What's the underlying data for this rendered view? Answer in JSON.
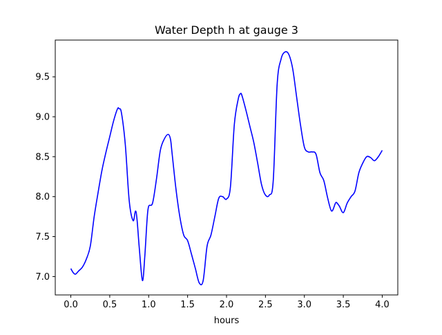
{
  "chart_data": {
    "type": "line",
    "title": "Water Depth h at gauge 3",
    "xlabel": "hours",
    "ylabel": "",
    "xlim": [
      -0.2,
      4.2
    ],
    "ylim": [
      6.77,
      9.96
    ],
    "xticks": [
      0.0,
      0.5,
      1.0,
      1.5,
      2.0,
      2.5,
      3.0,
      3.5,
      4.0
    ],
    "xtick_labels": [
      "0.0",
      "0.5",
      "1.0",
      "1.5",
      "2.0",
      "2.5",
      "3.0",
      "3.5",
      "4.0"
    ],
    "yticks": [
      7.0,
      7.5,
      8.0,
      8.5,
      9.0,
      9.5
    ],
    "ytick_labels": [
      "7.0",
      "7.5",
      "8.0",
      "8.5",
      "9.0",
      "9.5"
    ],
    "grid": false,
    "series": [
      {
        "color": "#0000ff",
        "x": [
          0.0,
          0.03,
          0.06,
          0.1,
          0.15,
          0.2,
          0.25,
          0.3,
          0.35,
          0.4,
          0.45,
          0.5,
          0.55,
          0.6,
          0.62,
          0.65,
          0.7,
          0.75,
          0.8,
          0.83,
          0.85,
          0.88,
          0.92,
          0.95,
          0.98,
          1.0,
          1.05,
          1.1,
          1.15,
          1.2,
          1.25,
          1.28,
          1.3,
          1.35,
          1.4,
          1.45,
          1.5,
          1.55,
          1.6,
          1.65,
          1.7,
          1.75,
          1.8,
          1.85,
          1.9,
          1.95,
          2.0,
          2.05,
          2.1,
          2.15,
          2.18,
          2.2,
          2.25,
          2.3,
          2.35,
          2.4,
          2.45,
          2.5,
          2.55,
          2.6,
          2.65,
          2.7,
          2.75,
          2.8,
          2.85,
          2.9,
          2.95,
          3.0,
          3.05,
          3.1,
          3.15,
          3.2,
          3.25,
          3.3,
          3.35,
          3.4,
          3.42,
          3.45,
          3.5,
          3.55,
          3.6,
          3.65,
          3.7,
          3.75,
          3.8,
          3.85,
          3.9,
          3.95,
          4.0
        ],
        "y": [
          7.1,
          7.05,
          7.03,
          7.07,
          7.12,
          7.22,
          7.38,
          7.75,
          8.05,
          8.33,
          8.55,
          8.75,
          8.95,
          9.1,
          9.1,
          9.05,
          8.65,
          7.95,
          7.7,
          7.82,
          7.72,
          7.35,
          6.95,
          7.25,
          7.72,
          7.88,
          7.92,
          8.22,
          8.58,
          8.72,
          8.78,
          8.72,
          8.55,
          8.1,
          7.75,
          7.52,
          7.45,
          7.28,
          7.1,
          6.92,
          6.95,
          7.38,
          7.52,
          7.75,
          7.98,
          8.0,
          7.97,
          8.12,
          8.9,
          9.22,
          9.29,
          9.26,
          9.08,
          8.88,
          8.68,
          8.42,
          8.15,
          8.02,
          8.02,
          8.2,
          9.4,
          9.72,
          9.81,
          9.78,
          9.6,
          9.25,
          8.9,
          8.62,
          8.56,
          8.56,
          8.53,
          8.3,
          8.2,
          7.98,
          7.82,
          7.92,
          7.92,
          7.88,
          7.8,
          7.92,
          8.0,
          8.07,
          8.3,
          8.42,
          8.5,
          8.49,
          8.45,
          8.5,
          8.58
        ]
      }
    ]
  }
}
